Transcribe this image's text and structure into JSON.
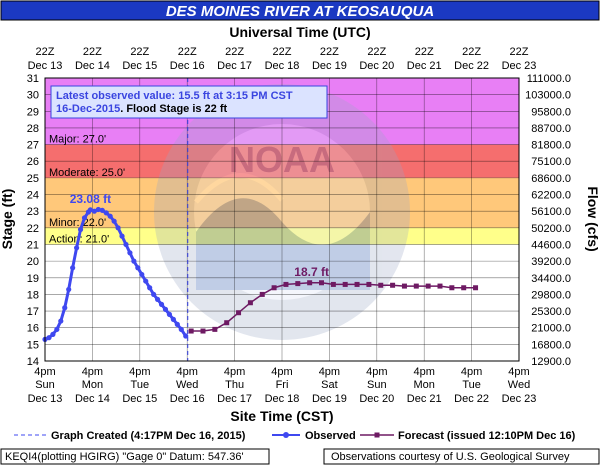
{
  "chart_data": {
    "type": "line",
    "title": "DES MOINES RIVER AT KEOSAUQUA",
    "top_axis_title": "Universal Time (UTC)",
    "xlabel": "Site Time (CST)",
    "ylabel": "Stage (ft)",
    "y2label": "Flow (cfs)",
    "x_range": [
      "2015-12-13T16:00",
      "2015-12-23T16:00"
    ],
    "ylim": [
      14,
      31
    ],
    "y_ticks": [
      14,
      15,
      16,
      17,
      18,
      19,
      20,
      21,
      22,
      23,
      24,
      25,
      26,
      27,
      28,
      29,
      30,
      31
    ],
    "flow_ticks": [
      "12900.0",
      "16800.0",
      "21000.0",
      "25300.0",
      "29800.0",
      "34400.0",
      "39200.0",
      "44600.0",
      "50200.0",
      "56100.0",
      "62200.0",
      "68600.0",
      "75100.0",
      "81800.0",
      "88700.0",
      "95800.0",
      "103000.0",
      "111000.0"
    ],
    "top_ticks": [
      {
        "l1": "22Z",
        "l2": "Dec 13"
      },
      {
        "l1": "22Z",
        "l2": "Dec 14"
      },
      {
        "l1": "22Z",
        "l2": "Dec 15"
      },
      {
        "l1": "22Z",
        "l2": "Dec 16"
      },
      {
        "l1": "22Z",
        "l2": "Dec 17"
      },
      {
        "l1": "22Z",
        "l2": "Dec 18"
      },
      {
        "l1": "22Z",
        "l2": "Dec 19"
      },
      {
        "l1": "22Z",
        "l2": "Dec 20"
      },
      {
        "l1": "22Z",
        "l2": "Dec 21"
      },
      {
        "l1": "22Z",
        "l2": "Dec 22"
      },
      {
        "l1": "22Z",
        "l2": "Dec 23"
      }
    ],
    "bottom_ticks": [
      {
        "l1": "4pm",
        "l2": "Sun",
        "l3": "Dec 13"
      },
      {
        "l1": "4pm",
        "l2": "Mon",
        "l3": "Dec 14"
      },
      {
        "l1": "4pm",
        "l2": "Tue",
        "l3": "Dec 15"
      },
      {
        "l1": "4pm",
        "l2": "Wed",
        "l3": "Dec 16"
      },
      {
        "l1": "4pm",
        "l2": "Thu",
        "l3": "Dec 17"
      },
      {
        "l1": "4pm",
        "l2": "Fri",
        "l3": "Dec 18"
      },
      {
        "l1": "4pm",
        "l2": "Sat",
        "l3": "Dec 19"
      },
      {
        "l1": "4pm",
        "l2": "Sun",
        "l3": "Dec 20"
      },
      {
        "l1": "4pm",
        "l2": "Mon",
        "l3": "Dec 21"
      },
      {
        "l1": "4pm",
        "l2": "Tue",
        "l3": "Dec 22"
      },
      {
        "l1": "4pm",
        "l2": "Wed",
        "l3": "Dec 23"
      }
    ],
    "flood_categories": [
      {
        "name": "Major: 27.0'",
        "from": 27,
        "to": 31,
        "color": "#e87ff5"
      },
      {
        "name": "Moderate: 25.0'",
        "from": 25,
        "to": 27,
        "color": "#f56e6e"
      },
      {
        "name": "Minor: 22.0'",
        "from": 22,
        "to": 25,
        "color": "#ffc87a"
      },
      {
        "name": "Action: 21.0'",
        "from": 21,
        "to": 22,
        "color": "#ffff8a"
      }
    ],
    "info_box": {
      "line1": "Latest observed value: 15.5 ft at 3:15 PM CST",
      "line2_date": "16-Dec-2015",
      "line2_text": ". Flood Stage is 22 ft"
    },
    "annotations": [
      {
        "text": "23.08 ft",
        "x": "2015-12-14T15:00",
        "y": 23.08,
        "series": "observed"
      },
      {
        "text": "18.7 ft",
        "x": "2015-12-19T07:00",
        "y": 18.7,
        "series": "forecast"
      }
    ],
    "graph_created": {
      "x": "2015-12-16T16:17",
      "label": "Graph Created (4:17PM Dec 16, 2015)"
    },
    "series": [
      {
        "name": "Observed",
        "color": "#3f48f0",
        "points": [
          [
            "2015-12-13T16:00",
            15.3
          ],
          [
            "2015-12-13T18:00",
            15.4
          ],
          [
            "2015-12-13T20:00",
            15.6
          ],
          [
            "2015-12-13T22:00",
            15.9
          ],
          [
            "2015-12-14T00:00",
            16.4
          ],
          [
            "2015-12-14T02:00",
            17.2
          ],
          [
            "2015-12-14T04:00",
            18.3
          ],
          [
            "2015-12-14T06:00",
            19.6
          ],
          [
            "2015-12-14T08:00",
            20.8
          ],
          [
            "2015-12-14T10:00",
            21.9
          ],
          [
            "2015-12-14T12:00",
            22.6
          ],
          [
            "2015-12-14T14:00",
            22.95
          ],
          [
            "2015-12-14T15:00",
            23.08
          ],
          [
            "2015-12-14T17:00",
            23.0
          ],
          [
            "2015-12-14T19:00",
            23.1
          ],
          [
            "2015-12-14T21:00",
            23.05
          ],
          [
            "2015-12-14T23:00",
            22.9
          ],
          [
            "2015-12-15T01:00",
            22.7
          ],
          [
            "2015-12-15T03:00",
            22.4
          ],
          [
            "2015-12-15T05:00",
            22.0
          ],
          [
            "2015-12-15T07:00",
            21.5
          ],
          [
            "2015-12-15T09:00",
            21.0
          ],
          [
            "2015-12-15T11:00",
            20.5
          ],
          [
            "2015-12-15T13:00",
            20.0
          ],
          [
            "2015-12-15T15:00",
            19.6
          ],
          [
            "2015-12-15T17:00",
            19.2
          ],
          [
            "2015-12-15T19:00",
            18.8
          ],
          [
            "2015-12-15T21:00",
            18.4
          ],
          [
            "2015-12-15T23:00",
            18.0
          ],
          [
            "2015-12-16T01:00",
            17.7
          ],
          [
            "2015-12-16T03:00",
            17.4
          ],
          [
            "2015-12-16T05:00",
            17.1
          ],
          [
            "2015-12-16T07:00",
            16.8
          ],
          [
            "2015-12-16T09:00",
            16.5
          ],
          [
            "2015-12-16T11:00",
            16.2
          ],
          [
            "2015-12-16T13:00",
            15.9
          ],
          [
            "2015-12-16T15:15",
            15.5
          ]
        ]
      },
      {
        "name": "Forecast (issued 12:10PM Dec 16)",
        "color": "#6e1a63",
        "points": [
          [
            "2015-12-16T18:00",
            15.8
          ],
          [
            "2015-12-17T00:00",
            15.8
          ],
          [
            "2015-12-17T06:00",
            15.9
          ],
          [
            "2015-12-17T12:00",
            16.3
          ],
          [
            "2015-12-17T18:00",
            16.9
          ],
          [
            "2015-12-18T00:00",
            17.5
          ],
          [
            "2015-12-18T06:00",
            18.0
          ],
          [
            "2015-12-18T12:00",
            18.4
          ],
          [
            "2015-12-18T18:00",
            18.6
          ],
          [
            "2015-12-19T00:00",
            18.65
          ],
          [
            "2015-12-19T06:00",
            18.7
          ],
          [
            "2015-12-19T12:00",
            18.7
          ],
          [
            "2015-12-19T18:00",
            18.6
          ],
          [
            "2015-12-20T00:00",
            18.6
          ],
          [
            "2015-12-20T06:00",
            18.6
          ],
          [
            "2015-12-20T12:00",
            18.6
          ],
          [
            "2015-12-20T18:00",
            18.55
          ],
          [
            "2015-12-21T00:00",
            18.55
          ],
          [
            "2015-12-21T06:00",
            18.5
          ],
          [
            "2015-12-21T12:00",
            18.5
          ],
          [
            "2015-12-21T18:00",
            18.5
          ],
          [
            "2015-12-22T00:00",
            18.5
          ],
          [
            "2015-12-22T06:00",
            18.4
          ],
          [
            "2015-12-22T12:00",
            18.4
          ],
          [
            "2015-12-22T18:00",
            18.4
          ]
        ]
      }
    ],
    "legend": {
      "graph_created": "Graph Created (4:17PM Dec 16, 2015)",
      "observed": "Observed",
      "forecast": "Forecast (issued 12:10PM Dec 16)"
    },
    "footer_left": "KEQI4(plotting HGIRG) \"Gage 0\" Datum: 547.36'",
    "footer_right": "Observations courtesy of U.S. Geological Survey",
    "colors": {
      "title_bar": "#1b39c2",
      "observed": "#3f48f0",
      "forecast": "#6e1a63",
      "info_text": "#3a45e0",
      "background": "#ffffff"
    }
  }
}
